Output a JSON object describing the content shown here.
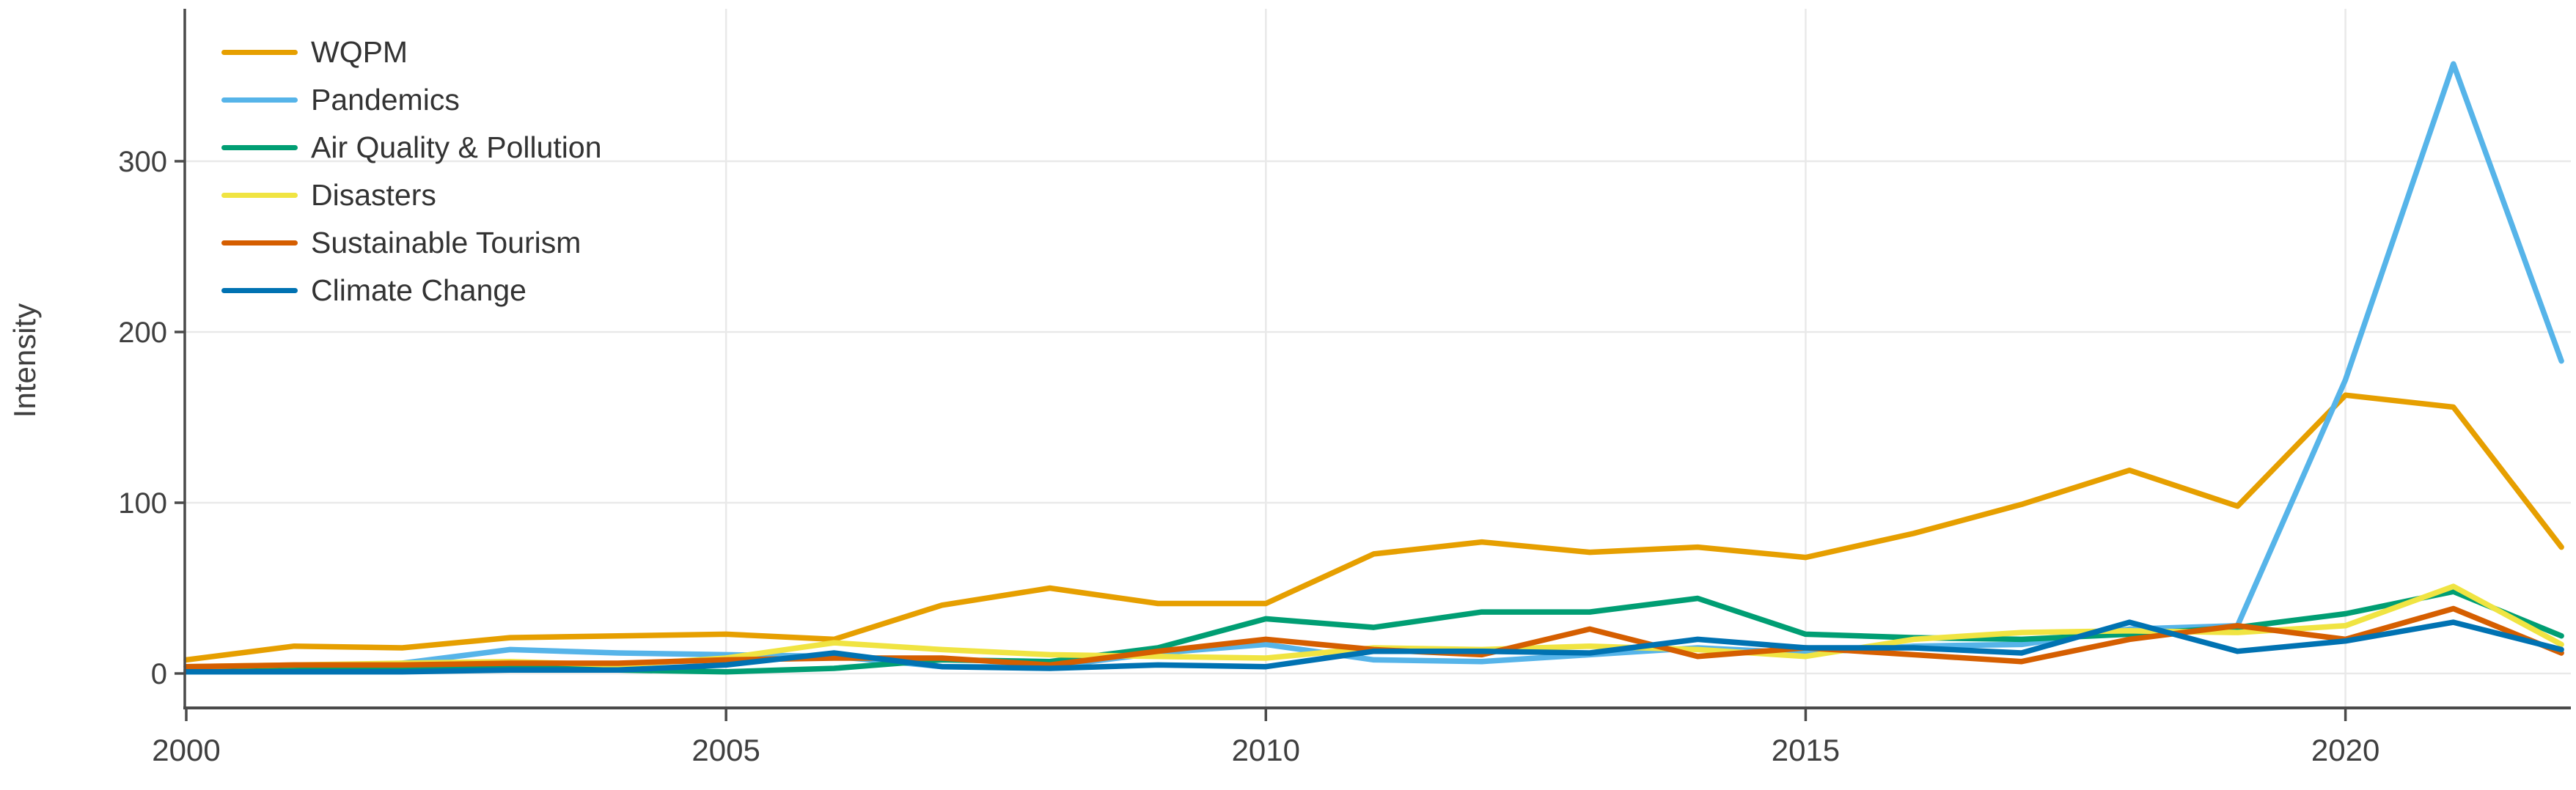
{
  "chart": {
    "y_axis_title": "Intensity",
    "colors": {
      "background": "#ffffff",
      "grid": "#e9e9e9",
      "axis": "#4a4a4a",
      "tick_text": "#3f3f3f",
      "legend_text": "#333333"
    }
  },
  "chart_data": {
    "type": "line",
    "title": "",
    "xlabel": "",
    "ylabel": "Intensity",
    "x": [
      2000,
      2001,
      2002,
      2003,
      2004,
      2005,
      2006,
      2007,
      2008,
      2009,
      2010,
      2011,
      2012,
      2013,
      2014,
      2015,
      2016,
      2017,
      2018,
      2019,
      2020,
      2021,
      2022
    ],
    "x_ticks": [
      2000,
      2005,
      2010,
      2015,
      2020
    ],
    "y_ticks": [
      0,
      100,
      200,
      300
    ],
    "xlim": [
      2000,
      2022
    ],
    "ylim": [
      0,
      380
    ],
    "grid": "on",
    "legend_position": "top-left",
    "series": [
      {
        "name": "WQPM",
        "color": "#E69F00",
        "values": [
          8,
          16,
          15,
          21,
          22,
          23,
          20,
          40,
          50,
          41,
          41,
          70,
          77,
          71,
          74,
          68,
          82,
          99,
          119,
          98,
          163,
          156,
          74
        ]
      },
      {
        "name": "Pandemics",
        "color": "#56B4E9",
        "values": [
          1,
          2,
          6,
          14,
          12,
          11,
          10,
          4,
          4,
          12,
          17,
          8,
          7,
          11,
          15,
          12,
          16,
          17,
          26,
          28,
          172,
          357,
          183
        ]
      },
      {
        "name": "Air Quality & Pollution",
        "color": "#009E73",
        "values": [
          2,
          3,
          3,
          4,
          2,
          1,
          3,
          8,
          7,
          15,
          32,
          27,
          36,
          36,
          44,
          23,
          21,
          20,
          23,
          27,
          35,
          48,
          22
        ]
      },
      {
        "name": "Disasters",
        "color": "#F0E442",
        "values": [
          4,
          5,
          6,
          7,
          5,
          9,
          18,
          14,
          11,
          10,
          9,
          15,
          14,
          16,
          14,
          10,
          20,
          24,
          25,
          24,
          28,
          51,
          17
        ]
      },
      {
        "name": "Sustainable Tourism",
        "color": "#D55E00",
        "values": [
          4,
          5,
          5,
          6,
          6,
          8,
          9,
          9,
          5,
          13,
          20,
          14,
          11,
          26,
          10,
          15,
          11,
          7,
          20,
          28,
          20,
          38,
          12
        ]
      },
      {
        "name": "Climate Change",
        "color": "#0072B2",
        "values": [
          1,
          1,
          1,
          2,
          2,
          5,
          12,
          4,
          3,
          5,
          4,
          13,
          13,
          12,
          20,
          15,
          15,
          12,
          30,
          13,
          19,
          30,
          14
        ]
      }
    ]
  }
}
